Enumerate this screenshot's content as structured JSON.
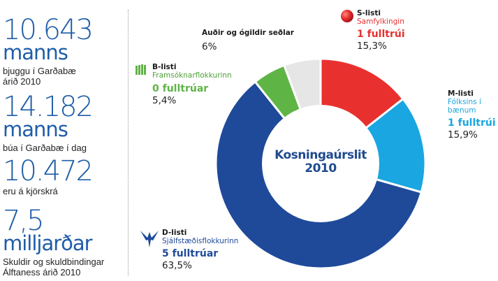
{
  "stats": [
    {
      "number": "10.643",
      "unit": "manns",
      "caption": [
        "bjuggu í Garðabæ",
        "árið 2010"
      ]
    },
    {
      "number": "14.182",
      "unit": "manns",
      "caption": [
        "búa í Garðabæ í dag"
      ]
    },
    {
      "number": "10.472",
      "unit": "",
      "caption": [
        "eru á kjörskrá"
      ]
    },
    {
      "number": "7,5",
      "unit": "milljarðar",
      "caption": [
        "Skuldir og skuldbindingar",
        "Álftaness árið 2010"
      ]
    }
  ],
  "chart_data": {
    "type": "pie",
    "title": [
      "Kosningaúrslit",
      "2010"
    ],
    "slices": [
      {
        "list": "S-listi",
        "party": "Samfylkingin",
        "seats": "1 fulltrúi",
        "percent_label": "15,3%",
        "value": 15.3,
        "color": "#e8312f",
        "icon": "red-ball-icon"
      },
      {
        "list": "M-listi",
        "party": [
          "Fólksins í",
          "bænum"
        ],
        "seats": "1 fulltrúi",
        "percent_label": "15,9%",
        "value": 15.9,
        "color": "#1aa6e0",
        "icon": ""
      },
      {
        "list": "D-listi",
        "party": "Sjálfstæðisflokkurinn",
        "seats": "5 fulltrúar",
        "percent_label": "63,5%",
        "value": 63.5,
        "color": "#1f4a9a",
        "icon": "falcon-icon"
      },
      {
        "list": "B-listi",
        "party": "Framsóknarflokkurinn",
        "seats": "0 fulltrúar",
        "percent_label": "5,4%",
        "value": 5.4,
        "color": "#5fb446",
        "icon": "book-icon"
      },
      {
        "list": "Auðir og ógildir seðlar",
        "party": "",
        "seats": "",
        "percent_label": "6%",
        "value": 6.0,
        "color": "#e6e6e6",
        "icon": ""
      }
    ]
  }
}
